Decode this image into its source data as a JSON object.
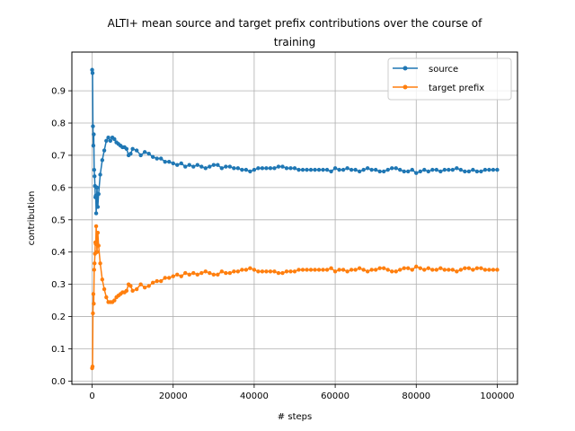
{
  "chart_data": {
    "type": "line",
    "title_lines": [
      "ALTI+ mean source and target prefix contributions over the course of",
      "training"
    ],
    "xlabel": "# steps",
    "ylabel": "contribution",
    "xlim": [
      -5000,
      105000
    ],
    "ylim": [
      -0.01,
      1.02
    ],
    "xticks": [
      0,
      20000,
      40000,
      60000,
      80000,
      100000
    ],
    "xtick_labels": [
      "0",
      "20000",
      "40000",
      "60000",
      "80000",
      "100000"
    ],
    "yticks": [
      0.0,
      0.1,
      0.2,
      0.3,
      0.4,
      0.5,
      0.6,
      0.7,
      0.8,
      0.9
    ],
    "ytick_labels": [
      "0.0",
      "0.1",
      "0.2",
      "0.3",
      "0.4",
      "0.5",
      "0.6",
      "0.7",
      "0.8",
      "0.9"
    ],
    "grid": true,
    "legend_position": "top-right",
    "series": [
      {
        "name": "source",
        "color": "#1f77b4",
        "points": [
          [
            0,
            0.965
          ],
          [
            100,
            0.955
          ],
          [
            200,
            0.79
          ],
          [
            300,
            0.73
          ],
          [
            400,
            0.765
          ],
          [
            500,
            0.655
          ],
          [
            600,
            0.635
          ],
          [
            700,
            0.605
          ],
          [
            800,
            0.57
          ],
          [
            900,
            0.575
          ],
          [
            1000,
            0.52
          ],
          [
            1200,
            0.6
          ],
          [
            1400,
            0.54
          ],
          [
            1600,
            0.58
          ],
          [
            2000,
            0.64
          ],
          [
            2500,
            0.685
          ],
          [
            3000,
            0.715
          ],
          [
            3500,
            0.745
          ],
          [
            4000,
            0.755
          ],
          [
            4500,
            0.745
          ],
          [
            5000,
            0.755
          ],
          [
            5500,
            0.75
          ],
          [
            6000,
            0.74
          ],
          [
            6500,
            0.735
          ],
          [
            7000,
            0.73
          ],
          [
            7500,
            0.725
          ],
          [
            8000,
            0.725
          ],
          [
            8500,
            0.72
          ],
          [
            9000,
            0.7
          ],
          [
            9500,
            0.705
          ],
          [
            10000,
            0.72
          ],
          [
            11000,
            0.715
          ],
          [
            12000,
            0.7
          ],
          [
            13000,
            0.71
          ],
          [
            14000,
            0.705
          ],
          [
            15000,
            0.695
          ],
          [
            16000,
            0.69
          ],
          [
            17000,
            0.69
          ],
          [
            18000,
            0.68
          ],
          [
            19000,
            0.68
          ],
          [
            20000,
            0.675
          ],
          [
            21000,
            0.67
          ],
          [
            22000,
            0.675
          ],
          [
            23000,
            0.665
          ],
          [
            24000,
            0.67
          ],
          [
            25000,
            0.665
          ],
          [
            26000,
            0.67
          ],
          [
            27000,
            0.665
          ],
          [
            28000,
            0.66
          ],
          [
            29000,
            0.665
          ],
          [
            30000,
            0.67
          ],
          [
            31000,
            0.67
          ],
          [
            32000,
            0.66
          ],
          [
            33000,
            0.665
          ],
          [
            34000,
            0.665
          ],
          [
            35000,
            0.66
          ],
          [
            36000,
            0.66
          ],
          [
            37000,
            0.655
          ],
          [
            38000,
            0.655
          ],
          [
            39000,
            0.65
          ],
          [
            40000,
            0.655
          ],
          [
            41000,
            0.66
          ],
          [
            42000,
            0.66
          ],
          [
            43000,
            0.66
          ],
          [
            44000,
            0.66
          ],
          [
            45000,
            0.66
          ],
          [
            46000,
            0.665
          ],
          [
            47000,
            0.665
          ],
          [
            48000,
            0.66
          ],
          [
            49000,
            0.66
          ],
          [
            50000,
            0.66
          ],
          [
            51000,
            0.655
          ],
          [
            52000,
            0.655
          ],
          [
            53000,
            0.655
          ],
          [
            54000,
            0.655
          ],
          [
            55000,
            0.655
          ],
          [
            56000,
            0.655
          ],
          [
            57000,
            0.655
          ],
          [
            58000,
            0.655
          ],
          [
            59000,
            0.65
          ],
          [
            60000,
            0.66
          ],
          [
            61000,
            0.655
          ],
          [
            62000,
            0.655
          ],
          [
            63000,
            0.66
          ],
          [
            64000,
            0.655
          ],
          [
            65000,
            0.655
          ],
          [
            66000,
            0.65
          ],
          [
            67000,
            0.655
          ],
          [
            68000,
            0.66
          ],
          [
            69000,
            0.655
          ],
          [
            70000,
            0.655
          ],
          [
            71000,
            0.65
          ],
          [
            72000,
            0.65
          ],
          [
            73000,
            0.655
          ],
          [
            74000,
            0.66
          ],
          [
            75000,
            0.66
          ],
          [
            76000,
            0.655
          ],
          [
            77000,
            0.65
          ],
          [
            78000,
            0.65
          ],
          [
            79000,
            0.655
          ],
          [
            80000,
            0.645
          ],
          [
            81000,
            0.65
          ],
          [
            82000,
            0.655
          ],
          [
            83000,
            0.65
          ],
          [
            84000,
            0.655
          ],
          [
            85000,
            0.655
          ],
          [
            86000,
            0.65
          ],
          [
            87000,
            0.655
          ],
          [
            88000,
            0.655
          ],
          [
            89000,
            0.655
          ],
          [
            90000,
            0.66
          ],
          [
            91000,
            0.655
          ],
          [
            92000,
            0.65
          ],
          [
            93000,
            0.65
          ],
          [
            94000,
            0.655
          ],
          [
            95000,
            0.65
          ],
          [
            96000,
            0.65
          ],
          [
            97000,
            0.655
          ],
          [
            98000,
            0.655
          ],
          [
            99000,
            0.655
          ],
          [
            100000,
            0.655
          ]
        ]
      },
      {
        "name": "target prefix",
        "color": "#ff7f0e",
        "points": [
          [
            0,
            0.04
          ],
          [
            100,
            0.045
          ],
          [
            200,
            0.21
          ],
          [
            300,
            0.27
          ],
          [
            400,
            0.24
          ],
          [
            500,
            0.345
          ],
          [
            600,
            0.365
          ],
          [
            700,
            0.395
          ],
          [
            800,
            0.43
          ],
          [
            900,
            0.425
          ],
          [
            1000,
            0.48
          ],
          [
            1200,
            0.4
          ],
          [
            1400,
            0.46
          ],
          [
            1600,
            0.42
          ],
          [
            2000,
            0.365
          ],
          [
            2500,
            0.315
          ],
          [
            3000,
            0.285
          ],
          [
            3500,
            0.26
          ],
          [
            4000,
            0.245
          ],
          [
            4500,
            0.245
          ],
          [
            5000,
            0.245
          ],
          [
            5500,
            0.25
          ],
          [
            6000,
            0.26
          ],
          [
            6500,
            0.265
          ],
          [
            7000,
            0.27
          ],
          [
            7500,
            0.275
          ],
          [
            8000,
            0.275
          ],
          [
            8500,
            0.28
          ],
          [
            9000,
            0.3
          ],
          [
            9500,
            0.295
          ],
          [
            10000,
            0.28
          ],
          [
            11000,
            0.285
          ],
          [
            12000,
            0.3
          ],
          [
            13000,
            0.29
          ],
          [
            14000,
            0.295
          ],
          [
            15000,
            0.305
          ],
          [
            16000,
            0.31
          ],
          [
            17000,
            0.31
          ],
          [
            18000,
            0.32
          ],
          [
            19000,
            0.32
          ],
          [
            20000,
            0.325
          ],
          [
            21000,
            0.33
          ],
          [
            22000,
            0.325
          ],
          [
            23000,
            0.335
          ],
          [
            24000,
            0.33
          ],
          [
            25000,
            0.335
          ],
          [
            26000,
            0.33
          ],
          [
            27000,
            0.335
          ],
          [
            28000,
            0.34
          ],
          [
            29000,
            0.335
          ],
          [
            30000,
            0.33
          ],
          [
            31000,
            0.33
          ],
          [
            32000,
            0.34
          ],
          [
            33000,
            0.335
          ],
          [
            34000,
            0.335
          ],
          [
            35000,
            0.34
          ],
          [
            36000,
            0.34
          ],
          [
            37000,
            0.345
          ],
          [
            38000,
            0.345
          ],
          [
            39000,
            0.35
          ],
          [
            40000,
            0.345
          ],
          [
            41000,
            0.34
          ],
          [
            42000,
            0.34
          ],
          [
            43000,
            0.34
          ],
          [
            44000,
            0.34
          ],
          [
            45000,
            0.34
          ],
          [
            46000,
            0.335
          ],
          [
            47000,
            0.335
          ],
          [
            48000,
            0.34
          ],
          [
            49000,
            0.34
          ],
          [
            50000,
            0.34
          ],
          [
            51000,
            0.345
          ],
          [
            52000,
            0.345
          ],
          [
            53000,
            0.345
          ],
          [
            54000,
            0.345
          ],
          [
            55000,
            0.345
          ],
          [
            56000,
            0.345
          ],
          [
            57000,
            0.345
          ],
          [
            58000,
            0.345
          ],
          [
            59000,
            0.35
          ],
          [
            60000,
            0.34
          ],
          [
            61000,
            0.345
          ],
          [
            62000,
            0.345
          ],
          [
            63000,
            0.34
          ],
          [
            64000,
            0.345
          ],
          [
            65000,
            0.345
          ],
          [
            66000,
            0.35
          ],
          [
            67000,
            0.345
          ],
          [
            68000,
            0.34
          ],
          [
            69000,
            0.345
          ],
          [
            70000,
            0.345
          ],
          [
            71000,
            0.35
          ],
          [
            72000,
            0.35
          ],
          [
            73000,
            0.345
          ],
          [
            74000,
            0.34
          ],
          [
            75000,
            0.34
          ],
          [
            76000,
            0.345
          ],
          [
            77000,
            0.35
          ],
          [
            78000,
            0.35
          ],
          [
            79000,
            0.345
          ],
          [
            80000,
            0.355
          ],
          [
            81000,
            0.35
          ],
          [
            82000,
            0.345
          ],
          [
            83000,
            0.35
          ],
          [
            84000,
            0.345
          ],
          [
            85000,
            0.345
          ],
          [
            86000,
            0.35
          ],
          [
            87000,
            0.345
          ],
          [
            88000,
            0.345
          ],
          [
            89000,
            0.345
          ],
          [
            90000,
            0.34
          ],
          [
            91000,
            0.345
          ],
          [
            92000,
            0.35
          ],
          [
            93000,
            0.35
          ],
          [
            94000,
            0.345
          ],
          [
            95000,
            0.35
          ],
          [
            96000,
            0.35
          ],
          [
            97000,
            0.345
          ],
          [
            98000,
            0.345
          ],
          [
            99000,
            0.345
          ],
          [
            100000,
            0.345
          ]
        ]
      }
    ]
  }
}
